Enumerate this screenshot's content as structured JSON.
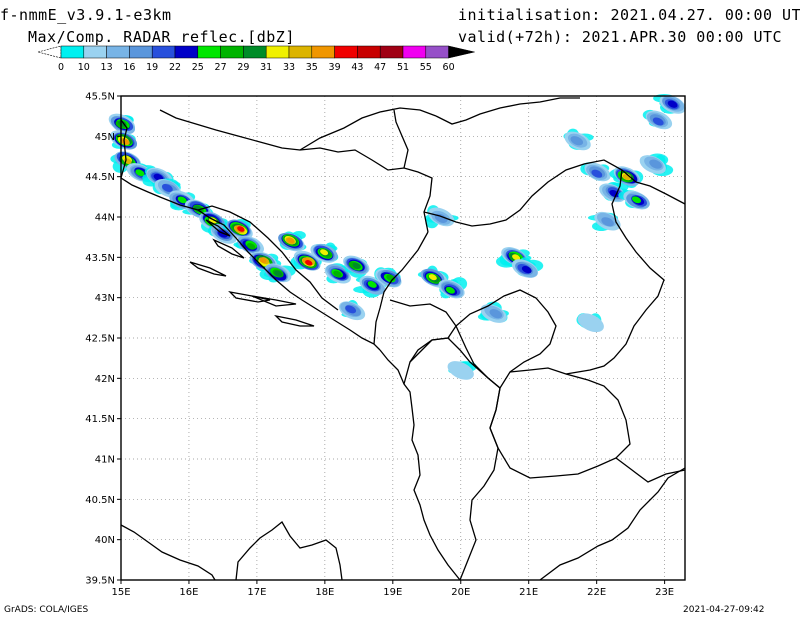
{
  "header": {
    "model": "f-nmmE_v3.9.1-e3km",
    "product": "Max/Comp. RADAR reflec.[dbZ]",
    "initialisation": "initialisation: 2021.04.27. 00:00 UTC",
    "valid": "valid(+72h): 2021.APR.30 00:00 UTC"
  },
  "colorbar": {
    "labels": [
      "0",
      "10",
      "13",
      "16",
      "19",
      "22",
      "25",
      "27",
      "29",
      "31",
      "33",
      "35",
      "39",
      "43",
      "47",
      "51",
      "55",
      "60"
    ],
    "colors": [
      "#00f0f0",
      "#9ad2f0",
      "#78b4e6",
      "#5a96dc",
      "#2850dc",
      "#0000c8",
      "#00e600",
      "#00b400",
      "#008c28",
      "#f0f000",
      "#dcb400",
      "#f09600",
      "#f00000",
      "#c80000",
      "#a00014",
      "#f000f0",
      "#9650c8",
      "#000000"
    ]
  },
  "map": {
    "lat_labels": [
      "45.5N",
      "45N",
      "44.5N",
      "44N",
      "43.5N",
      "43N",
      "42.5N",
      "42N",
      "41.5N",
      "41N",
      "40.5N",
      "40N",
      "39.5N"
    ],
    "lon_labels": [
      "15E",
      "16E",
      "17E",
      "18E",
      "19E",
      "20E",
      "21E",
      "22E",
      "23E"
    ],
    "lat_range": [
      39.5,
      45.5
    ],
    "lon_range": [
      15.0,
      23.3
    ],
    "grid": "dotted",
    "precip_cells": [
      {
        "lon": 15.02,
        "lat": 45.15,
        "dbz": 29
      },
      {
        "lon": 15.05,
        "lat": 44.95,
        "dbz": 35
      },
      {
        "lon": 15.1,
        "lat": 44.7,
        "dbz": 33
      },
      {
        "lon": 15.3,
        "lat": 44.55,
        "dbz": 25
      },
      {
        "lon": 15.55,
        "lat": 44.5,
        "dbz": 22
      },
      {
        "lon": 15.7,
        "lat": 44.35,
        "dbz": 19
      },
      {
        "lon": 15.9,
        "lat": 44.2,
        "dbz": 25
      },
      {
        "lon": 16.15,
        "lat": 44.1,
        "dbz": 29
      },
      {
        "lon": 16.35,
        "lat": 43.95,
        "dbz": 31
      },
      {
        "lon": 16.5,
        "lat": 43.8,
        "dbz": 22
      },
      {
        "lon": 16.75,
        "lat": 43.85,
        "dbz": 39
      },
      {
        "lon": 16.9,
        "lat": 43.65,
        "dbz": 27
      },
      {
        "lon": 17.1,
        "lat": 43.45,
        "dbz": 35
      },
      {
        "lon": 17.3,
        "lat": 43.3,
        "dbz": 29
      },
      {
        "lon": 17.5,
        "lat": 43.7,
        "dbz": 35
      },
      {
        "lon": 17.75,
        "lat": 43.45,
        "dbz": 39
      },
      {
        "lon": 18.0,
        "lat": 43.55,
        "dbz": 31
      },
      {
        "lon": 18.2,
        "lat": 43.3,
        "dbz": 27
      },
      {
        "lon": 18.45,
        "lat": 43.4,
        "dbz": 29
      },
      {
        "lon": 18.7,
        "lat": 43.15,
        "dbz": 25
      },
      {
        "lon": 18.95,
        "lat": 43.25,
        "dbz": 27
      },
      {
        "lon": 18.4,
        "lat": 42.85,
        "dbz": 19
      },
      {
        "lon": 19.6,
        "lat": 43.25,
        "dbz": 31
      },
      {
        "lon": 19.85,
        "lat": 43.1,
        "dbz": 25
      },
      {
        "lon": 19.7,
        "lat": 44.0,
        "dbz": 16
      },
      {
        "lon": 20.5,
        "lat": 42.8,
        "dbz": 16
      },
      {
        "lon": 20.8,
        "lat": 43.5,
        "dbz": 31
      },
      {
        "lon": 20.95,
        "lat": 43.35,
        "dbz": 22
      },
      {
        "lon": 21.7,
        "lat": 44.95,
        "dbz": 16
      },
      {
        "lon": 22.0,
        "lat": 44.55,
        "dbz": 19
      },
      {
        "lon": 22.25,
        "lat": 44.3,
        "dbz": 22
      },
      {
        "lon": 22.45,
        "lat": 44.5,
        "dbz": 33
      },
      {
        "lon": 22.6,
        "lat": 44.2,
        "dbz": 25
      },
      {
        "lon": 22.85,
        "lat": 44.65,
        "dbz": 16
      },
      {
        "lon": 22.15,
        "lat": 43.95,
        "dbz": 16
      },
      {
        "lon": 23.1,
        "lat": 45.4,
        "dbz": 22
      },
      {
        "lon": 22.9,
        "lat": 45.2,
        "dbz": 19
      },
      {
        "lon": 21.9,
        "lat": 42.7,
        "dbz": 10
      },
      {
        "lon": 20.0,
        "lat": 42.1,
        "dbz": 10
      }
    ]
  },
  "footer": {
    "left": "GrADS: COLA/IGES",
    "right": "2021-04-27-09:42"
  }
}
